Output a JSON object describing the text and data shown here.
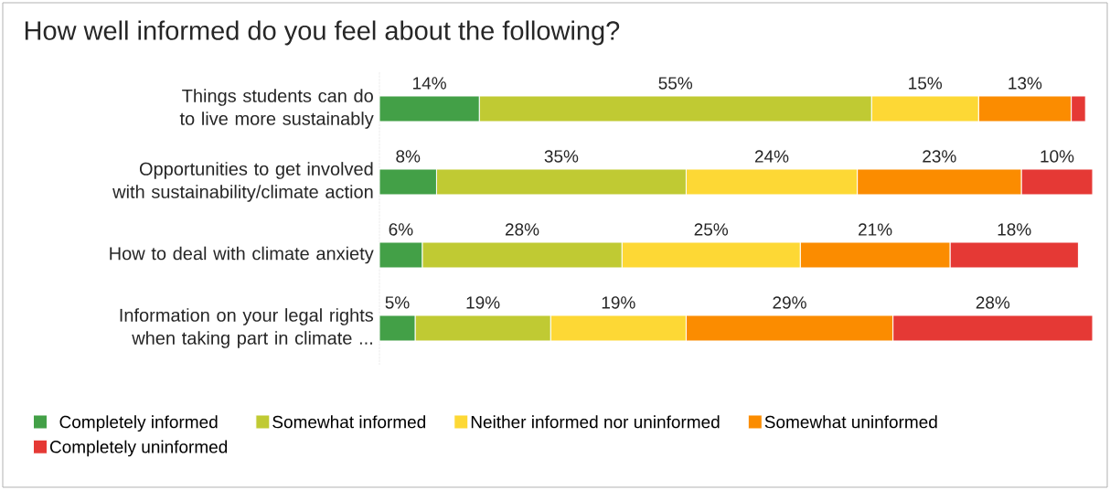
{
  "chart_data": {
    "type": "bar",
    "orientation": "horizontal",
    "stacked": true,
    "title": "How well informed do you feel about the following?",
    "categories": [
      "Things students can do to live more sustainably",
      "Opportunities to get involved with sustainability/climate action",
      "How to deal with climate anxiety",
      "Information on your legal rights when taking part in climate ..."
    ],
    "series": [
      {
        "name": "Completely informed",
        "color": "#43a047",
        "values": [
          14,
          8,
          6,
          5
        ],
        "value_labels": [
          "14%",
          "8%",
          "6%",
          "5%"
        ]
      },
      {
        "name": "Somewhat informed",
        "color": "#c0ca33",
        "values": [
          55,
          35,
          28,
          19
        ],
        "value_labels": [
          "55%",
          "35%",
          "28%",
          "19%"
        ]
      },
      {
        "name": "Neither informed nor uninformed",
        "color": "#fdd835",
        "values": [
          15,
          24,
          25,
          19
        ],
        "value_labels": [
          "15%",
          "24%",
          "25%",
          "19%"
        ]
      },
      {
        "name": "Somewhat uninformed",
        "color": "#fb8c00",
        "values": [
          13,
          23,
          21,
          29
        ],
        "value_labels": [
          "13%",
          "23%",
          "21%",
          "29%"
        ]
      },
      {
        "name": "Completely uninformed",
        "color": "#e53935",
        "values": [
          2,
          10,
          18,
          28
        ],
        "value_labels": [
          null,
          "10%",
          "18%",
          "28%"
        ]
      }
    ],
    "legend": "bottom"
  }
}
